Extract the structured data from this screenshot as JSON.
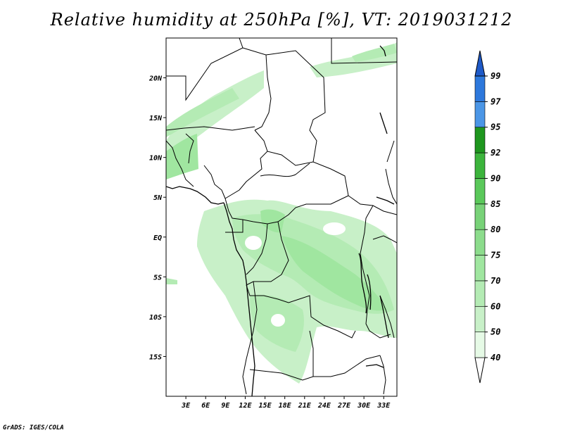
{
  "title": "Relative humidity at 250hPa [%], VT: 2019031212",
  "credit": "GrADS: IGES/COLA",
  "map": {
    "lon_range": [
      0,
      35
    ],
    "lat_range": [
      -20,
      25
    ],
    "lat_ticks": [
      {
        "value": 20,
        "label": "20N"
      },
      {
        "value": 15,
        "label": "15N"
      },
      {
        "value": 10,
        "label": "10N"
      },
      {
        "value": 5,
        "label": "5N"
      },
      {
        "value": 0,
        "label": "EQ"
      },
      {
        "value": -5,
        "label": "5S"
      },
      {
        "value": -10,
        "label": "10S"
      },
      {
        "value": -15,
        "label": "15S"
      }
    ],
    "lon_ticks": [
      {
        "value": 3,
        "label": "3E"
      },
      {
        "value": 6,
        "label": "6E"
      },
      {
        "value": 9,
        "label": "9E"
      },
      {
        "value": 12,
        "label": "12E"
      },
      {
        "value": 15,
        "label": "15E"
      },
      {
        "value": 18,
        "label": "18E"
      },
      {
        "value": 21,
        "label": "21E"
      },
      {
        "value": 24,
        "label": "24E"
      },
      {
        "value": 27,
        "label": "27E"
      },
      {
        "value": 30,
        "label": "30E"
      },
      {
        "value": 33,
        "label": "33E"
      }
    ]
  },
  "colorbar": {
    "levels": [
      "40",
      "50",
      "60",
      "70",
      "75",
      "80",
      "85",
      "90",
      "92",
      "95",
      "97",
      "99"
    ],
    "colors": [
      "#e6fae6",
      "#c8f0c8",
      "#b4ebb4",
      "#a0e6a0",
      "#8cdc8c",
      "#78d278",
      "#5ac85a",
      "#3cb43c",
      "#1e961e",
      "#4b96e6",
      "#2d78dc",
      "#1e5ac8"
    ],
    "below_color": "#ffffff",
    "above_color": "#1e5ac8"
  }
}
